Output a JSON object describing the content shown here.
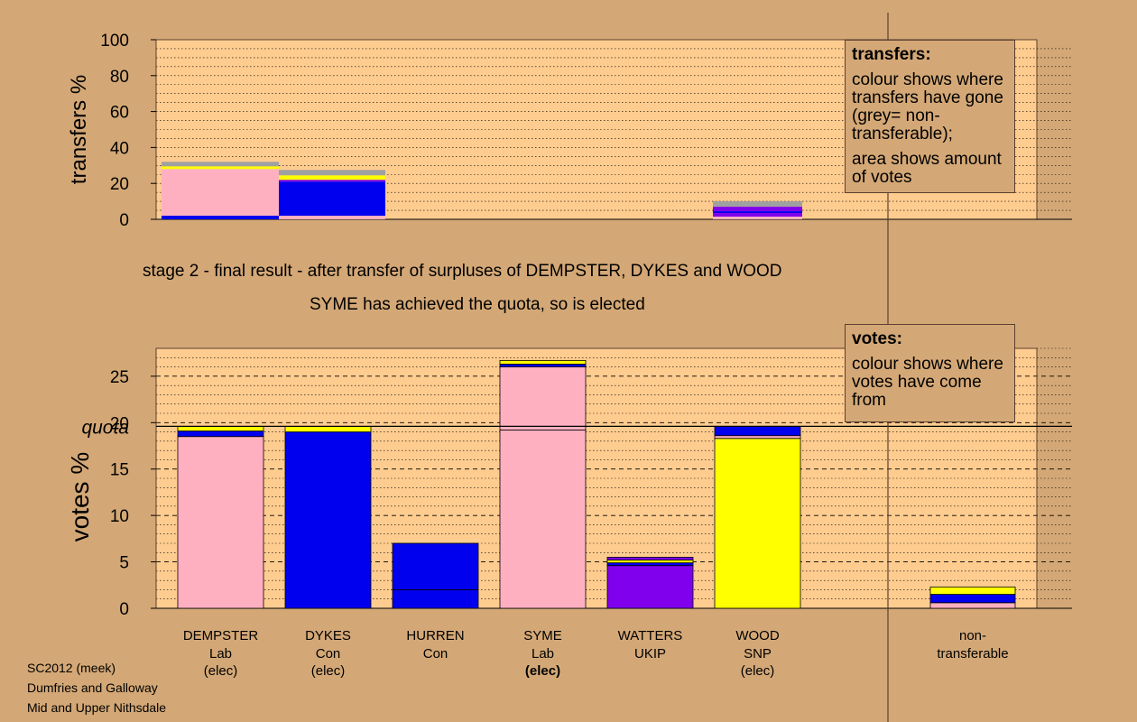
{
  "colors": {
    "page_bg": "#d4a876",
    "plot_bg": "#ffcc8f",
    "Lab": "#ffb0c0",
    "Con": "#0000ee",
    "SNP": "#ffff00",
    "UKIP": "#8000ee",
    "non_transferable": "#a0a0a0"
  },
  "captions": {
    "stage_line": "stage 2 - final result - after transfer of surpluses of DEMPSTER, DYKES and WOOD",
    "elected_line": "SYME has achieved the quota, so is elected"
  },
  "legends": {
    "transfers": {
      "title": "transfers:",
      "p1": "colour shows where transfers have gone (grey= non-transferable);",
      "p2": "area shows amount of votes"
    },
    "votes": {
      "title": "votes:",
      "p1": "colour shows where votes have come from"
    }
  },
  "footer": [
    "SC2012 (meek)",
    "Dumfries and Galloway",
    "Mid and Upper Nithsdale"
  ],
  "chart_data": [
    {
      "type": "bar",
      "stacked": true,
      "ylabel": "transfers %",
      "ylim": [
        0,
        100
      ],
      "yticks": [
        0,
        20,
        40,
        60,
        80,
        100
      ],
      "grid": "dotted horizontal",
      "legend_placement": "top-right",
      "bars": [
        {
          "candidate": "DEMPSTER",
          "segments": [
            {
              "party": "Con",
              "value": 2
            },
            {
              "party": "Lab",
              "value": 26
            },
            {
              "party": "SNP",
              "value": 1.5
            },
            {
              "party": "non_transferable",
              "value": 2.5
            }
          ]
        },
        {
          "candidate": "DYKES",
          "segments": [
            {
              "party": "Lab",
              "value": 2
            },
            {
              "party": "Con",
              "value": 19
            },
            {
              "party": "UKIP",
              "value": 1
            },
            {
              "party": "SNP",
              "value": 2.5
            },
            {
              "party": "non_transferable",
              "value": 3
            }
          ]
        },
        {
          "candidate": "WOOD",
          "segments": [
            {
              "party": "Lab",
              "value": 1.5
            },
            {
              "party": "UKIP",
              "value": 2
            },
            {
              "party": "Con",
              "value": 1
            },
            {
              "party": "UKIP",
              "value": 2.5
            },
            {
              "party": "non_transferable",
              "value": 3
            }
          ]
        }
      ]
    },
    {
      "type": "bar",
      "stacked": true,
      "ylabel": "votes %",
      "ylim": [
        0,
        28
      ],
      "yticks": [
        0,
        5,
        10,
        15,
        20,
        25
      ],
      "quota": 19.6,
      "quota_label": "quota",
      "grid": "dashed major, dotted minor",
      "legend_placement": "top-right",
      "categories": [
        {
          "name": "DEMPSTER",
          "party": "Lab",
          "status": "(elec)",
          "bold_status": false
        },
        {
          "name": "DYKES",
          "party": "Con",
          "status": "(elec)",
          "bold_status": false
        },
        {
          "name": "HURREN",
          "party": "Con",
          "status": "",
          "bold_status": false
        },
        {
          "name": "SYME",
          "party": "Lab",
          "status": "(elec)",
          "bold_status": true
        },
        {
          "name": "WATTERS",
          "party": "UKIP",
          "status": "",
          "bold_status": false
        },
        {
          "name": "WOOD",
          "party": "SNP",
          "status": "(elec)",
          "bold_status": false
        },
        {
          "name": "non-",
          "party": "transferable",
          "status": "",
          "bold_status": false
        }
      ],
      "stacks": [
        [
          {
            "party": "Lab",
            "value": 18.5
          },
          {
            "party": "Con",
            "value": 0.6
          },
          {
            "party": "SNP",
            "value": 0.5
          }
        ],
        [
          {
            "party": "Con",
            "value": 19.0
          },
          {
            "party": "SNP",
            "value": 0.6
          }
        ],
        [
          {
            "party": "Con",
            "value": 2.0
          },
          {
            "party": "Con",
            "value": 5.0
          }
        ],
        [
          {
            "party": "Lab",
            "value": 19.2
          },
          {
            "party": "Lab",
            "value": 6.8
          },
          {
            "party": "Con",
            "value": 0.3
          },
          {
            "party": "SNP",
            "value": 0.4
          }
        ],
        [
          {
            "party": "UKIP",
            "value": 4.6
          },
          {
            "party": "Con",
            "value": 0.3
          },
          {
            "party": "SNP",
            "value": 0.3
          },
          {
            "party": "UKIP",
            "value": 0.3
          }
        ],
        [
          {
            "party": "SNP",
            "value": 18.3
          },
          {
            "party": "Lab",
            "value": 0.3
          },
          {
            "party": "Con",
            "value": 1.0
          }
        ],
        [
          {
            "party": "Lab",
            "value": 0.6
          },
          {
            "party": "Con",
            "value": 0.9
          },
          {
            "party": "SNP",
            "value": 0.8
          }
        ]
      ]
    }
  ]
}
